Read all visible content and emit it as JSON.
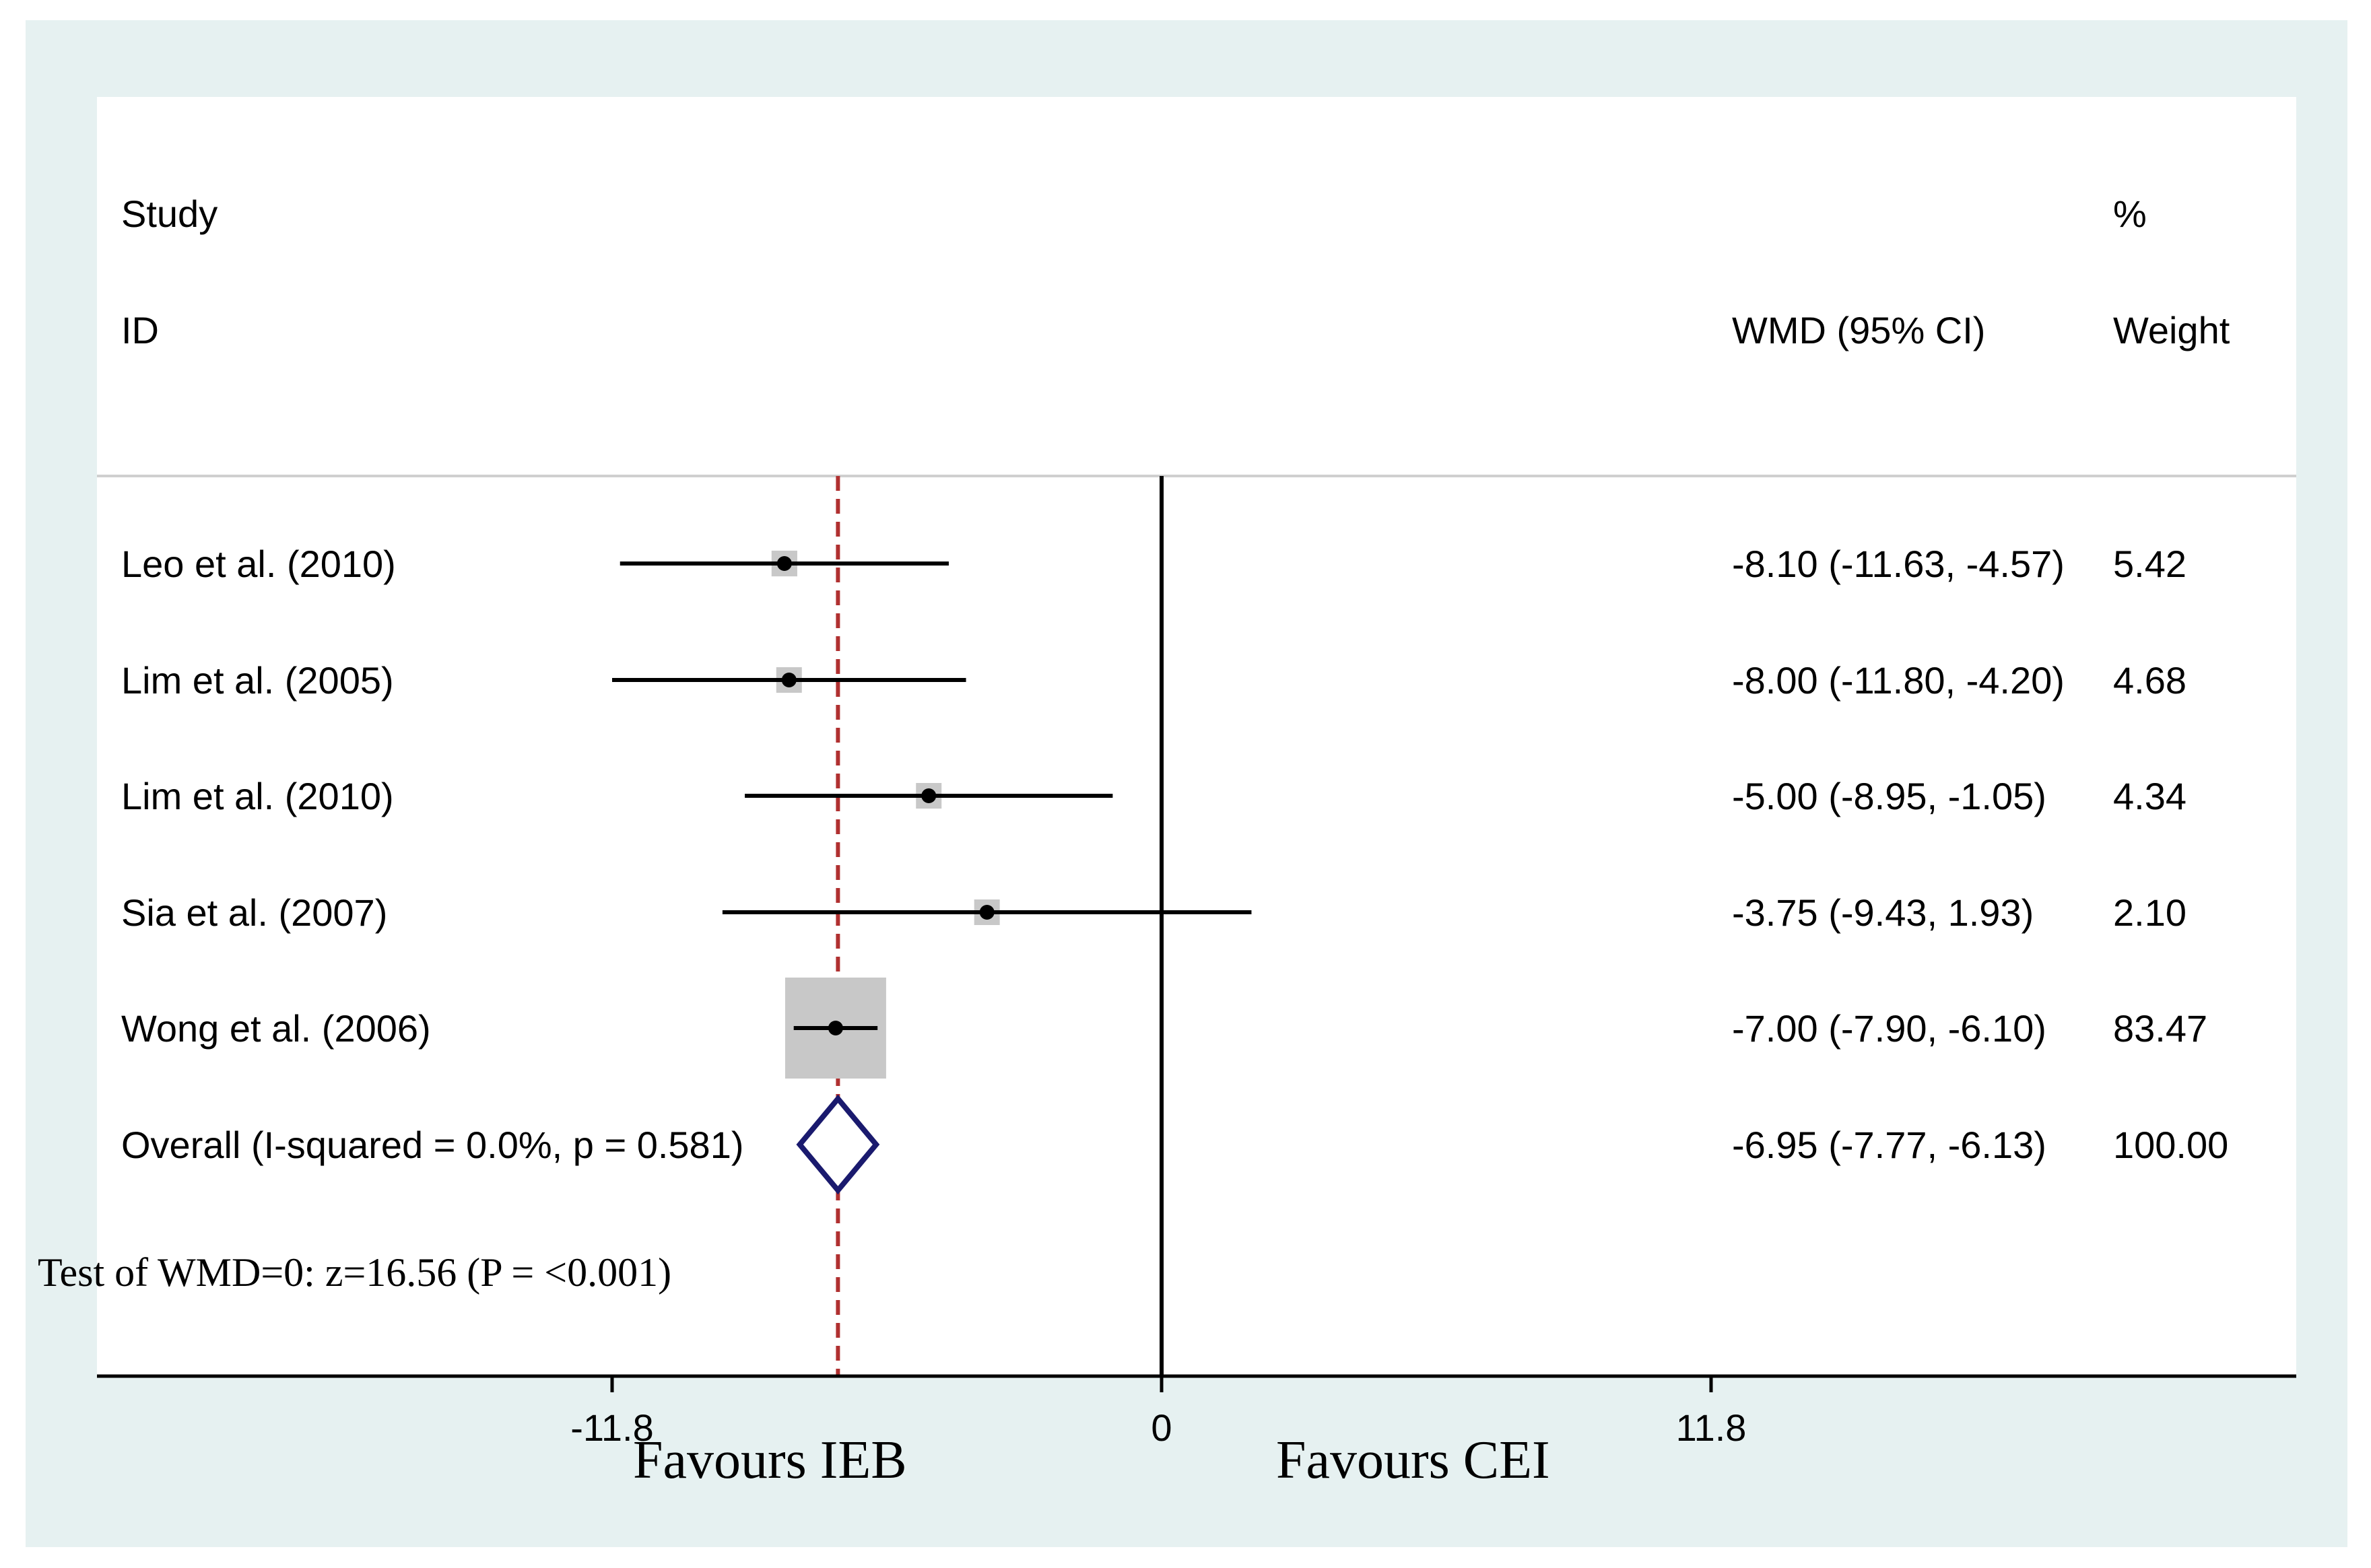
{
  "chart_data": {
    "type": "forest",
    "header": {
      "study_line1": "Study",
      "study_line2": "ID",
      "effect_label": "WMD (95% CI)",
      "weight_line1": "%",
      "weight_line2": "Weight"
    },
    "studies": [
      {
        "name": "Leo et al. (2010)",
        "estimate": -8.1,
        "lower": -11.63,
        "upper": -4.57,
        "weight": 5.42,
        "ci_text": "-8.10 (-11.63, -4.57)",
        "weight_text": "5.42"
      },
      {
        "name": "Lim et al. (2005)",
        "estimate": -8.0,
        "lower": -11.8,
        "upper": -4.2,
        "weight": 4.68,
        "ci_text": "-8.00 (-11.80, -4.20)",
        "weight_text": "4.68"
      },
      {
        "name": "Lim et al. (2010)",
        "estimate": -5.0,
        "lower": -8.95,
        "upper": -1.05,
        "weight": 4.34,
        "ci_text": "-5.00 (-8.95, -1.05)",
        "weight_text": "4.34"
      },
      {
        "name": "Sia et al. (2007)",
        "estimate": -3.75,
        "lower": -9.43,
        "upper": 1.93,
        "weight": 2.1,
        "ci_text": "-3.75 (-9.43, 1.93)",
        "weight_text": "2.10"
      },
      {
        "name": "Wong et al. (2006)",
        "estimate": -7.0,
        "lower": -7.9,
        "upper": -6.1,
        "weight": 83.47,
        "ci_text": "-7.00 (-7.90, -6.10)",
        "weight_text": "83.47"
      }
    ],
    "overall": {
      "name": "Overall  (I-squared = 0.0%, p = 0.581)",
      "estimate": -6.95,
      "lower": -7.77,
      "upper": -6.13,
      "ci_text": "-6.95 (-7.77, -6.13)",
      "weight_text": "100.00"
    },
    "test_text": "Test of WMD=0: z=16.56 (P = <0.001)",
    "x_ticks": [
      -11.8,
      0,
      11.8
    ],
    "x_tick_labels": [
      "-11.8",
      "0",
      "11.8"
    ],
    "favours_left": "Favours IEB",
    "favours_right": "Favours CEI",
    "null_line": 0,
    "colors": {
      "frame": "#e6f1f1",
      "box": "#c8c8c8",
      "diamond": "#1a1a6e",
      "ref_line": "#b03030",
      "ink": "#000000"
    }
  }
}
